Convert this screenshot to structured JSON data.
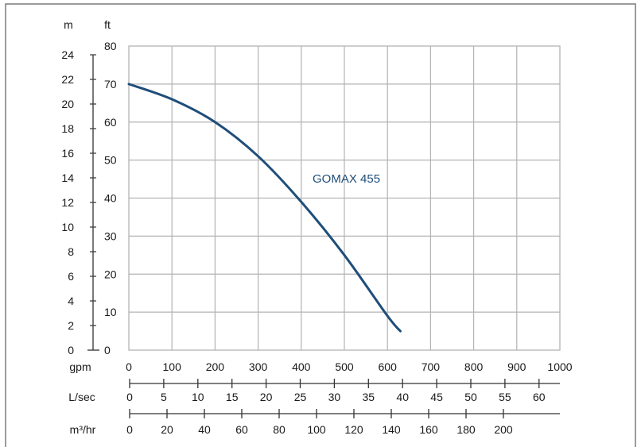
{
  "chart_data": {
    "type": "line",
    "colors": {
      "curve": "#1f4e79",
      "grid": "#b3b3b3",
      "axis": "#333333"
    },
    "grid": true,
    "axes": {
      "head_m": {
        "unit": "m",
        "ticks": [
          "0",
          "2",
          "4",
          "6",
          "8",
          "10",
          "12",
          "14",
          "16",
          "18",
          "20",
          "22",
          "24"
        ],
        "range": [
          0,
          24.4
        ]
      },
      "head_ft": {
        "unit": "ft",
        "ticks": [
          "0",
          "10",
          "20",
          "30",
          "40",
          "50",
          "60",
          "70",
          "80"
        ],
        "range": [
          0,
          80
        ]
      },
      "flow_gpm": {
        "unit": "gpm",
        "ticks": [
          "0",
          "100",
          "200",
          "300",
          "400",
          "500",
          "600",
          "700",
          "800",
          "900",
          "1000"
        ],
        "range": [
          0,
          1000
        ]
      },
      "flow_lsec": {
        "unit": "L/sec",
        "ticks": [
          "0",
          "5",
          "10",
          "15",
          "20",
          "25",
          "30",
          "35",
          "40",
          "45",
          "50",
          "55",
          "60"
        ]
      },
      "flow_m3hr": {
        "unit": "m³/hr",
        "ticks": [
          "0",
          "20",
          "40",
          "60",
          "80",
          "100",
          "120",
          "140",
          "160",
          "180",
          "200"
        ]
      }
    },
    "series": [
      {
        "name": "GOMAX 455",
        "x": [
          0,
          100,
          200,
          300,
          400,
          500,
          600,
          630
        ],
        "y": [
          70,
          66,
          60,
          51,
          39,
          25,
          9,
          5
        ]
      }
    ]
  }
}
